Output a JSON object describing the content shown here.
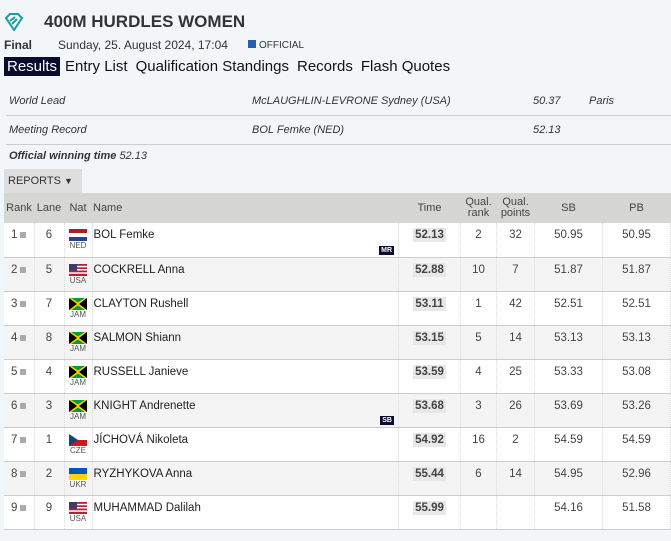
{
  "header": {
    "title": "400M HURDLES WOMEN",
    "round": "Final",
    "datetime": "Sunday, 25. August 2024, 17:04",
    "status": "OFFICIAL"
  },
  "tabs": [
    {
      "label": "Results",
      "active": true
    },
    {
      "label": "Entry List"
    },
    {
      "label": "Qualification Standings"
    },
    {
      "label": "Records"
    },
    {
      "label": "Flash Quotes"
    }
  ],
  "records": [
    {
      "label": "World Lead",
      "athlete": "McLAUGHLIN-LEVRONE Sydney (USA)",
      "time": "50.37",
      "venue": "Paris"
    },
    {
      "label": "Meeting Record",
      "athlete": "BOL Femke (NED)",
      "time": "52.13",
      "venue": ""
    }
  ],
  "winning": {
    "label": "Official winning time",
    "time": "52.13"
  },
  "reports_label": "REPORTS",
  "columns": {
    "rank": "Rank",
    "lane": "Lane",
    "nat": "Nat",
    "name": "Name",
    "time": "Time",
    "qrank": "Qual. rank",
    "qpoints": "Qual. points",
    "sb": "SB",
    "pb": "PB"
  },
  "rows": [
    {
      "rank": "1",
      "lane": "6",
      "nat": "NED",
      "name": "BOL Femke",
      "time": "52.13",
      "qrank": "2",
      "qpoints": "32",
      "sb": "50.95",
      "pb": "50.95",
      "badge": "MR"
    },
    {
      "rank": "2",
      "lane": "5",
      "nat": "USA",
      "name": "COCKRELL Anna",
      "time": "52.88",
      "qrank": "10",
      "qpoints": "7",
      "sb": "51.87",
      "pb": "51.87"
    },
    {
      "rank": "3",
      "lane": "7",
      "nat": "JAM",
      "name": "CLAYTON Rushell",
      "time": "53.11",
      "qrank": "1",
      "qpoints": "42",
      "sb": "52.51",
      "pb": "52.51"
    },
    {
      "rank": "4",
      "lane": "8",
      "nat": "JAM",
      "name": "SALMON Shiann",
      "time": "53.15",
      "qrank": "5",
      "qpoints": "14",
      "sb": "53.13",
      "pb": "53.13"
    },
    {
      "rank": "5",
      "lane": "4",
      "nat": "JAM",
      "name": "RUSSELL Janieve",
      "time": "53.59",
      "qrank": "4",
      "qpoints": "25",
      "sb": "53.33",
      "pb": "53.08"
    },
    {
      "rank": "6",
      "lane": "3",
      "nat": "JAM",
      "name": "KNIGHT Andrenette",
      "time": "53.68",
      "qrank": "3",
      "qpoints": "26",
      "sb": "53.69",
      "pb": "53.26",
      "badge": "SB"
    },
    {
      "rank": "7",
      "lane": "1",
      "nat": "CZE",
      "name": "JÍCHOVÁ Nikoleta",
      "time": "54.92",
      "qrank": "16",
      "qpoints": "2",
      "sb": "54.59",
      "pb": "54.59"
    },
    {
      "rank": "8",
      "lane": "2",
      "nat": "UKR",
      "name": "RYZHYKOVA Anna",
      "time": "55.44",
      "qrank": "6",
      "qpoints": "14",
      "sb": "54.95",
      "pb": "52.96"
    },
    {
      "rank": "9",
      "lane": "9",
      "nat": "USA",
      "name": "MUHAMMAD Dalilah",
      "time": "55.99",
      "qrank": "",
      "qpoints": "",
      "sb": "54.16",
      "pb": "51.58"
    }
  ]
}
